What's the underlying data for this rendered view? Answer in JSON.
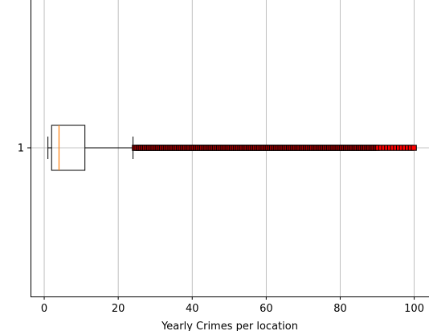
{
  "chart_data": {
    "type": "boxplot",
    "orientation": "horizontal",
    "title": "",
    "xlabel": "Yearly Crimes per location",
    "ylabel": "",
    "xlim": [
      -3.7,
      104
    ],
    "x_ticks": [
      0,
      20,
      40,
      60,
      80,
      100
    ],
    "y_ticks": [
      1
    ],
    "grid": true,
    "boxes": [
      {
        "position": 1,
        "whisker_low": 1,
        "q1": 2,
        "median": 4,
        "q3": 11,
        "whisker_high": 24,
        "outliers_from": 24.5,
        "outliers_to": 100,
        "outliers_sparse_from": 90
      }
    ],
    "colors": {
      "box": "#000000",
      "median": "#ff7f0e",
      "outlier_fill": "#ff0000",
      "outlier_edge": "#000000",
      "grid": "#b0b0b0"
    }
  }
}
